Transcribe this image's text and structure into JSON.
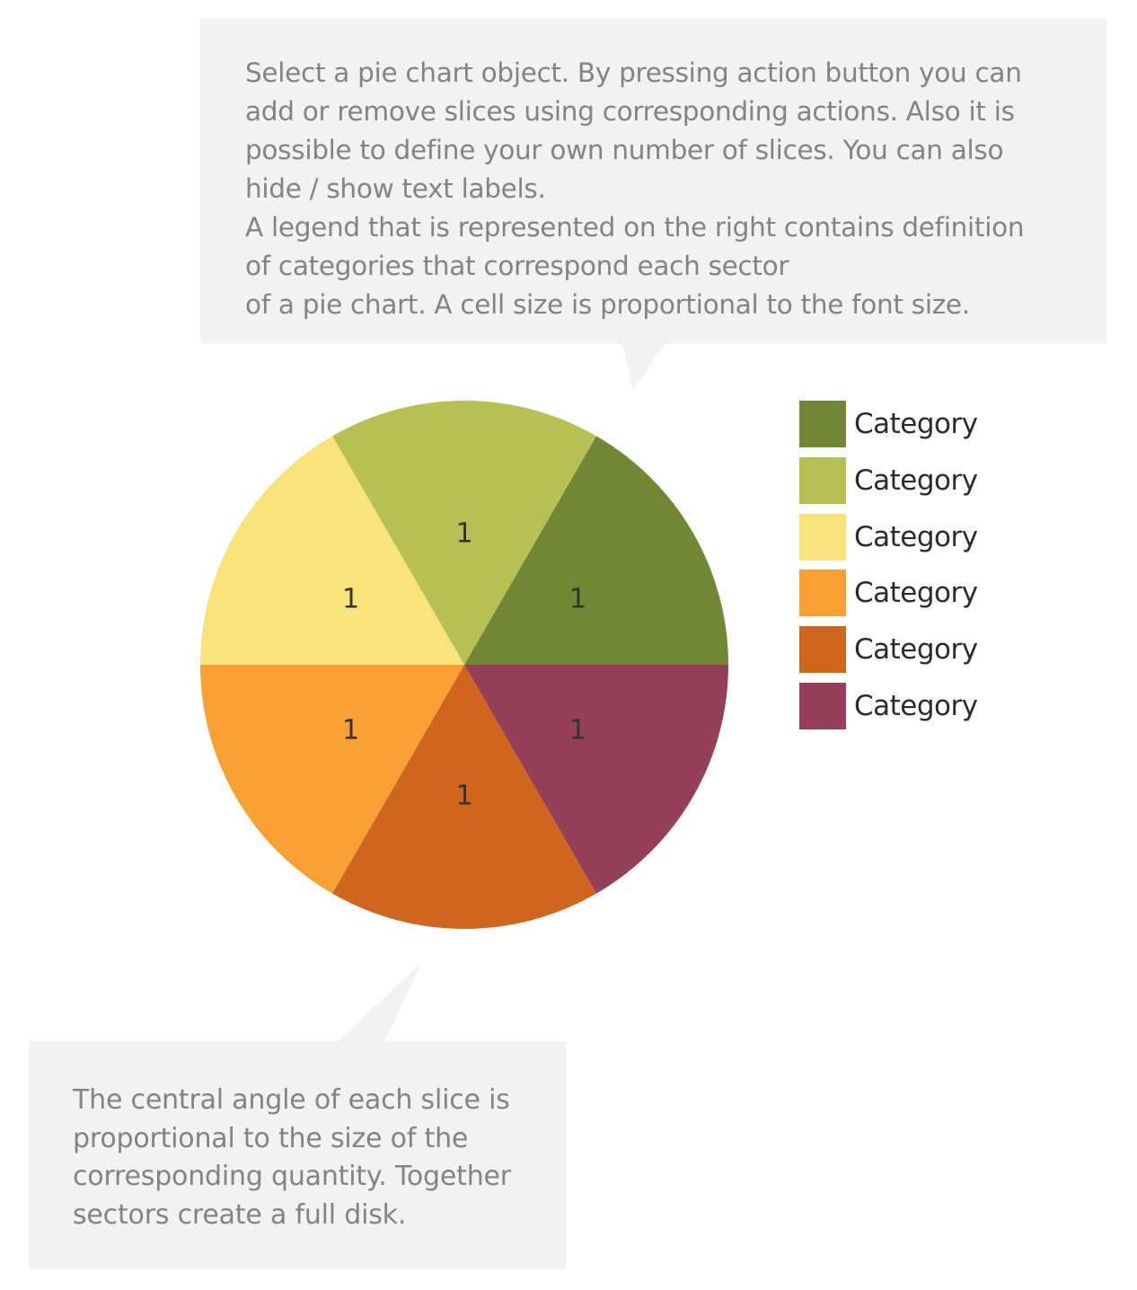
{
  "callouts": {
    "top": {
      "lines": [
        "Select a pie chart object. By pressing action button you can",
        "add or remove slices using corresponding actions. Also it is",
        "possible to define your own number of slices. You can also",
        "hide / show text labels.",
        "A legend that is represented on the right contains definition",
        "of categories that correspond each sector",
        "of a pie chart. A cell size is proportional to the font size."
      ]
    },
    "bottom": {
      "lines": [
        "The central angle of each slice is",
        "proportional to the size of the",
        "corresponding quantity. Together",
        "sectors create a full disk."
      ]
    }
  },
  "legend": {
    "items": [
      {
        "label": "Category",
        "color": "#718734"
      },
      {
        "label": "Category",
        "color": "#b6c053"
      },
      {
        "label": "Category",
        "color": "#f8e37a"
      },
      {
        "label": "Category",
        "color": "#f9a034"
      },
      {
        "label": "Category",
        "color": "#d0651e"
      },
      {
        "label": "Category",
        "color": "#953f59"
      }
    ]
  },
  "chart_data": {
    "type": "pie",
    "title": "",
    "categories": [
      "Category",
      "Category",
      "Category",
      "Category",
      "Category",
      "Category"
    ],
    "values": [
      1,
      1,
      1,
      1,
      1,
      1
    ],
    "colors": [
      "#718734",
      "#b6c053",
      "#f8e37a",
      "#f9a034",
      "#d0651e",
      "#953f59"
    ],
    "data_labels": [
      "1",
      "1",
      "1",
      "1",
      "1",
      "1"
    ],
    "start_angle_deg": 0,
    "direction": "counterclockwise",
    "legend_position": "right"
  }
}
